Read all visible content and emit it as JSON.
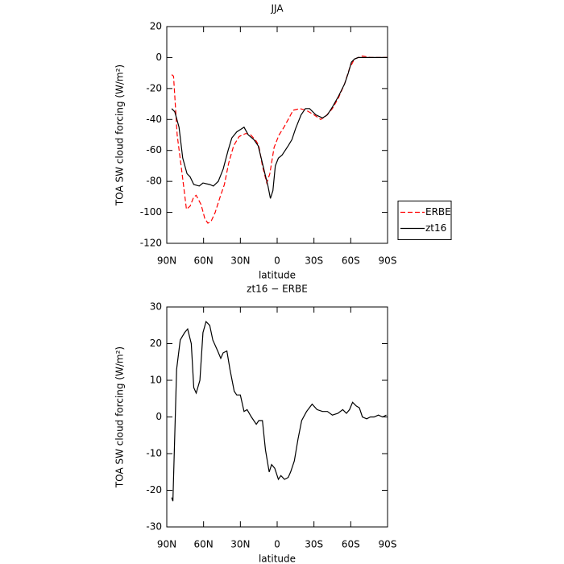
{
  "chart_data": [
    {
      "type": "line",
      "title": "JJA",
      "xlabel": "latitude",
      "ylabel": "TOA SW cloud forcing (W/m²)",
      "xlim": [
        90,
        -90
      ],
      "ylim": [
        -120,
        20
      ],
      "xticks": [
        {
          "value": 90,
          "label": "90N"
        },
        {
          "value": 60,
          "label": "60N"
        },
        {
          "value": 30,
          "label": "30N"
        },
        0,
        {
          "value": -30,
          "label": "30S"
        },
        {
          "value": -60,
          "label": "60S"
        },
        {
          "value": -90,
          "label": "90S"
        }
      ],
      "yticks": [
        20,
        0,
        -20,
        -40,
        -60,
        -80,
        -100,
        -120
      ],
      "legend": "right",
      "series": [
        {
          "name": "ERBE",
          "color": "#ff0000",
          "dashed": true,
          "x": [
            86,
            84.5,
            81.5,
            77.5,
            74,
            71,
            68,
            66,
            62,
            59,
            56.5,
            54,
            50.5,
            46.5,
            43,
            39.5,
            35.5,
            31,
            25.5,
            21.5,
            17,
            15,
            12,
            8.5,
            6,
            2.5,
            -1.5,
            -5.5,
            -9,
            -13,
            -18.5,
            -23.5,
            -30,
            -35.5,
            -39.5,
            -45,
            -50,
            -55,
            -59,
            -63,
            -69.5,
            -76,
            -86,
            -90
          ],
          "values": [
            -11,
            -12,
            -50,
            -75,
            -98,
            -96,
            -90,
            -89,
            -95,
            -104,
            -107,
            -106,
            -100,
            -90,
            -82,
            -68,
            -57,
            -51,
            -49,
            -50,
            -54,
            -57,
            -70,
            -81,
            -75,
            -58,
            -50,
            -45,
            -40,
            -34,
            -33,
            -34,
            -37,
            -40,
            -38,
            -33,
            -26,
            -17,
            -7,
            -1,
            1,
            0,
            0,
            0
          ]
        },
        {
          "name": "zt16",
          "color": "#000000",
          "dashed": false,
          "x": [
            86,
            83.5,
            80,
            77,
            73.5,
            71,
            68,
            63.5,
            60.5,
            55,
            52,
            48,
            44,
            40,
            37,
            33,
            27,
            23.5,
            19,
            15.5,
            13,
            10,
            7.5,
            5.5,
            3.5,
            1.5,
            -1,
            -4,
            -9,
            -12,
            -15,
            -19.5,
            -23,
            -26.5,
            -31.5,
            -37,
            -41,
            -45,
            -50,
            -55,
            -58,
            -60.5,
            -63,
            -66,
            -76,
            -86,
            -90
          ],
          "values": [
            -33,
            -35,
            -45,
            -65,
            -75,
            -77,
            -82,
            -83,
            -81,
            -82,
            -83,
            -80,
            -72,
            -60,
            -52,
            -48,
            -45,
            -50,
            -53,
            -57,
            -65,
            -75,
            -83,
            -91,
            -86,
            -70,
            -65,
            -63,
            -57,
            -53,
            -46,
            -37,
            -33,
            -33,
            -37,
            -39,
            -37,
            -32,
            -25,
            -17,
            -10,
            -3,
            -1,
            0,
            0,
            0,
            0
          ]
        }
      ]
    },
    {
      "type": "line",
      "title": "zt16 − ERBE",
      "xlabel": "latitude",
      "ylabel": "TOA SW cloud forcing (W/m²)",
      "xlim": [
        90,
        -90
      ],
      "ylim": [
        -30,
        30
      ],
      "xticks": [
        {
          "value": 90,
          "label": "90N"
        },
        {
          "value": 60,
          "label": "60N"
        },
        {
          "value": 30,
          "label": "30N"
        },
        0,
        {
          "value": -30,
          "label": "30S"
        },
        {
          "value": -60,
          "label": "60S"
        },
        {
          "value": -90,
          "label": "90S"
        }
      ],
      "yticks": [
        30,
        20,
        10,
        0,
        -10,
        -20,
        -30
      ],
      "series": [
        {
          "name": "zt16 − ERBE",
          "color": "#000000",
          "dashed": false,
          "x": [
            86,
            85,
            82,
            79,
            75.5,
            73,
            70,
            68,
            66,
            63,
            60.5,
            58,
            55,
            52.5,
            48.5,
            46,
            44,
            41,
            38.5,
            35,
            33,
            30,
            27,
            24.5,
            21,
            17,
            15,
            12,
            9.5,
            6.5,
            4.5,
            2,
            -1,
            -3,
            -6,
            -9,
            -11,
            -14,
            -17,
            -20,
            -24,
            -28.5,
            -32.5,
            -37,
            -41,
            -45,
            -49.5,
            -53.5,
            -56.5,
            -59,
            -61.5,
            -64.5,
            -67,
            -69.5,
            -73,
            -76,
            -79,
            -82.5,
            -86,
            -89
          ],
          "values": [
            -22,
            -23,
            13,
            21,
            23,
            24,
            20,
            8,
            6.5,
            10,
            23,
            26,
            25,
            21,
            18,
            16,
            17.5,
            18,
            13,
            7,
            6,
            6,
            1.5,
            2,
            0,
            -2,
            -1,
            -1,
            -9,
            -15,
            -13,
            -14,
            -17,
            -16,
            -17,
            -16.5,
            -15,
            -12,
            -6,
            -1,
            1.5,
            3.5,
            2,
            1.5,
            1.5,
            0.5,
            1,
            2,
            1,
            2,
            4,
            3,
            2.5,
            0,
            -0.5,
            0,
            0,
            0.5,
            0,
            0.5
          ]
        }
      ]
    }
  ]
}
